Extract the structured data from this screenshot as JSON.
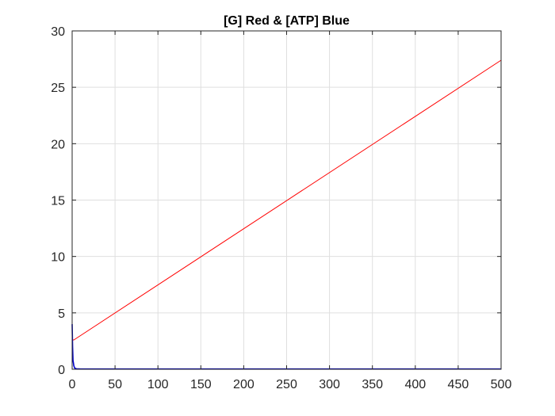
{
  "chart_data": {
    "type": "line",
    "title": "[G] Red & [ATP] Blue",
    "xlabel": "",
    "ylabel": "",
    "xlim": [
      0,
      500
    ],
    "ylim": [
      0,
      30
    ],
    "grid": true,
    "x_ticks": [
      0,
      50,
      100,
      150,
      200,
      250,
      300,
      350,
      400,
      450,
      500
    ],
    "y_ticks": [
      0,
      5,
      10,
      15,
      20,
      25,
      30
    ],
    "series": [
      {
        "color": "#ff0000",
        "x": [
          0,
          2,
          500
        ],
        "y": [
          2.6,
          2.6,
          27.4
        ]
      },
      {
        "color": "#0000cc",
        "x": [
          0,
          0.5,
          1,
          2,
          3,
          5,
          10,
          500
        ],
        "y": [
          4.0,
          2.0,
          0.8,
          0.3,
          0.1,
          0.04,
          0.02,
          0.02
        ]
      }
    ]
  }
}
